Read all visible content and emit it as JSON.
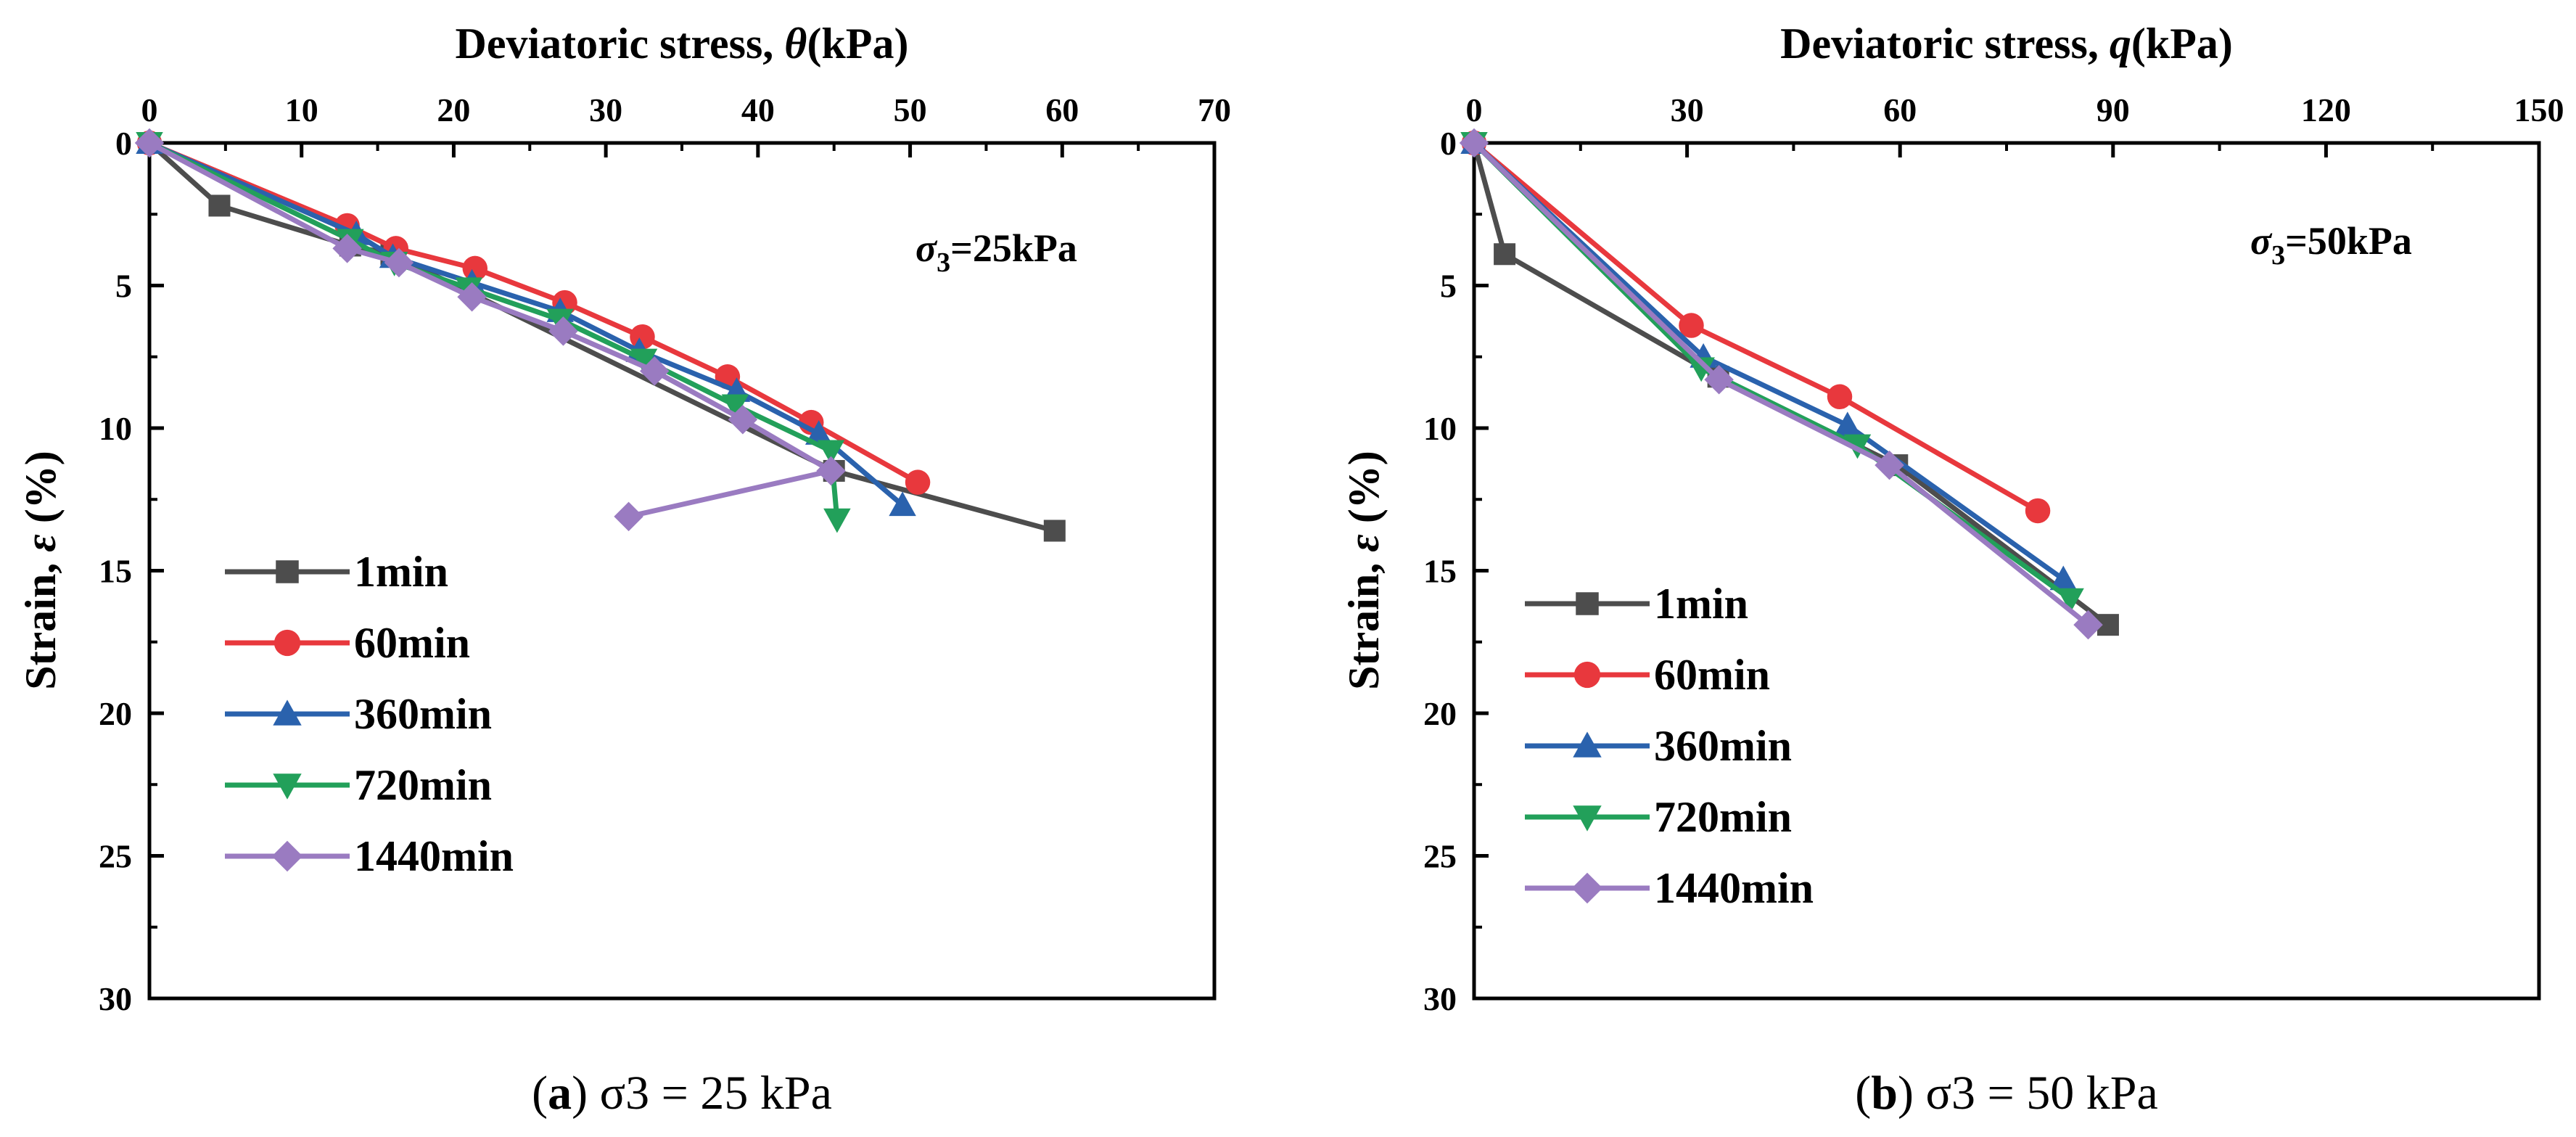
{
  "colors": {
    "1min": "#4d4d4d",
    "60min": "#e8383d",
    "360min": "#2a62ad",
    "720min": "#22a05a",
    "1440min": "#9a7bc1"
  },
  "chart_data": [
    {
      "type": "line",
      "panel": "a",
      "title": "",
      "xlabel_text": "Deviatoric stress,",
      "xlabel_var": "θ",
      "xlabel_unit": "(kPa)",
      "ylabel_text": "Strain,",
      "ylabel_var": "ε",
      "ylabel_unit": "(%)",
      "xlim": [
        0,
        70
      ],
      "ylim": [
        0,
        30
      ],
      "xticks": [
        "0",
        "10",
        "20",
        "30",
        "40",
        "50",
        "60",
        "70"
      ],
      "yticks": [
        "0",
        "5",
        "10",
        "15",
        "20",
        "25",
        "30"
      ],
      "annotation": {
        "symbol": "σ",
        "sub": "3",
        "text": "=25kPa"
      },
      "caption": {
        "label": "(a)",
        "text": "σ3 = 25 kPa"
      },
      "legend_position": "lower-left",
      "series": [
        {
          "name": "1min",
          "marker": "square",
          "x": [
            0,
            4.6,
            13.2,
            15.9,
            45.0,
            59.5
          ],
          "y": [
            0,
            2.2,
            3.6,
            3.9,
            11.5,
            13.6
          ]
        },
        {
          "name": "60min",
          "marker": "circle",
          "x": [
            0,
            13.0,
            16.2,
            21.4,
            27.3,
            32.4,
            38.0,
            43.5,
            50.5
          ],
          "y": [
            0,
            2.9,
            3.7,
            4.4,
            5.6,
            6.8,
            8.2,
            9.8,
            11.9
          ]
        },
        {
          "name": "360min",
          "marker": "triangle-up",
          "x": [
            0,
            13.6,
            16.0,
            21.2,
            27.0,
            32.2,
            38.6,
            44.0,
            49.5
          ],
          "y": [
            0,
            3.2,
            4.0,
            4.9,
            5.9,
            7.3,
            8.7,
            10.2,
            12.7
          ]
        },
        {
          "name": "720min",
          "marker": "triangle-down",
          "x": [
            0,
            13.2,
            16.1,
            21.0,
            27.0,
            32.5,
            38.5,
            44.8,
            45.2
          ],
          "y": [
            0,
            3.4,
            4.2,
            5.1,
            6.2,
            7.6,
            9.2,
            10.8,
            13.2
          ]
        },
        {
          "name": "1440min",
          "marker": "diamond",
          "x": [
            0,
            13.0,
            16.4,
            21.2,
            27.2,
            33.2,
            39.0,
            44.8,
            31.5
          ],
          "y": [
            0,
            3.7,
            4.2,
            5.4,
            6.6,
            8.0,
            9.7,
            11.5,
            13.1
          ]
        }
      ]
    },
    {
      "type": "line",
      "panel": "b",
      "title": "",
      "xlabel_text": "Deviatoric stress,",
      "xlabel_var": "q",
      "xlabel_unit": "(kPa)",
      "ylabel_text": "Strain,",
      "ylabel_var": "ε",
      "ylabel_unit": "(%)",
      "xlim": [
        0,
        150
      ],
      "ylim": [
        0,
        30
      ],
      "xticks": [
        "0",
        "30",
        "60",
        "90",
        "120",
        "150"
      ],
      "yticks": [
        "0",
        "5",
        "10",
        "15",
        "20",
        "25",
        "30"
      ],
      "annotation": {
        "symbol": "σ",
        "sub": "3",
        "text": "=50kPa"
      },
      "caption": {
        "label": "(b)",
        "text": "σ3 = 50 kPa"
      },
      "legend_position": "lower-left",
      "series": [
        {
          "name": "1min",
          "marker": "square",
          "x": [
            0,
            4.3,
            34.4,
            59.6,
            89.3
          ],
          "y": [
            0,
            3.9,
            8.2,
            11.3,
            16.9
          ]
        },
        {
          "name": "60min",
          "marker": "circle",
          "x": [
            0,
            30.6,
            51.5,
            79.4
          ],
          "y": [
            0,
            6.4,
            8.9,
            12.9
          ]
        },
        {
          "name": "360min",
          "marker": "triangle-up",
          "x": [
            0,
            32.3,
            52.6,
            83.0
          ],
          "y": [
            0,
            7.5,
            9.9,
            15.3
          ]
        },
        {
          "name": "720min",
          "marker": "triangle-down",
          "x": [
            0,
            32.0,
            54.0,
            84.0
          ],
          "y": [
            0,
            7.9,
            10.6,
            16.0
          ]
        },
        {
          "name": "1440min",
          "marker": "diamond",
          "x": [
            0,
            34.5,
            58.5,
            86.5
          ],
          "y": [
            0,
            8.3,
            11.3,
            16.9
          ]
        }
      ]
    }
  ]
}
